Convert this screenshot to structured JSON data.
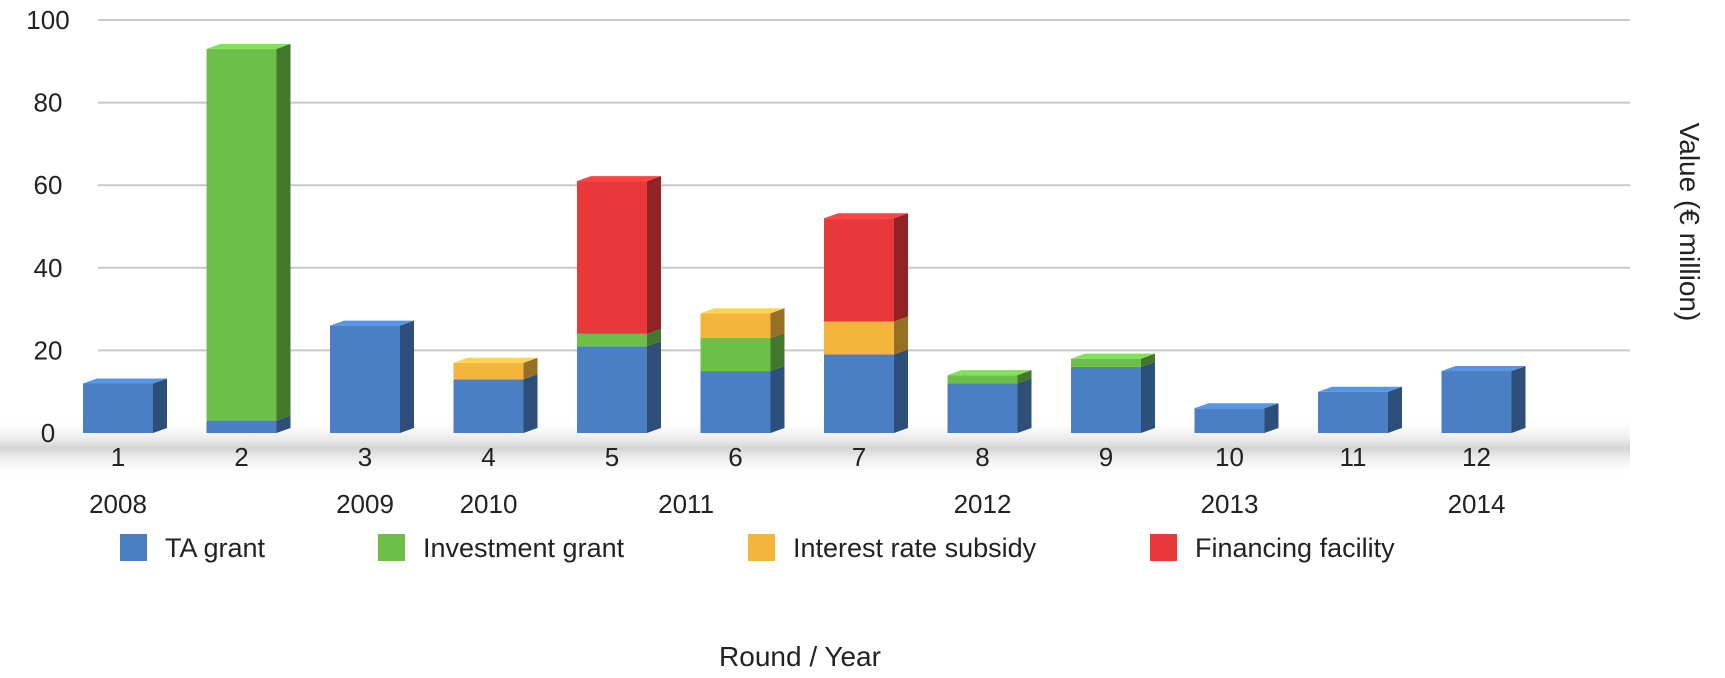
{
  "chart_data": {
    "type": "bar",
    "stacked": true,
    "categories": [
      "1",
      "2",
      "3",
      "4",
      "5",
      "6",
      "7",
      "8",
      "9",
      "10",
      "11",
      "12"
    ],
    "years": [
      {
        "label": "2008",
        "at_category": "1"
      },
      {
        "label": "2009",
        "at_category": "3"
      },
      {
        "label": "2010",
        "at_category": "4"
      },
      {
        "label": "2011",
        "at_category": "5.6"
      },
      {
        "label": "2012",
        "at_category": "8"
      },
      {
        "label": "2013",
        "at_category": "10"
      },
      {
        "label": "2014",
        "at_category": "12"
      }
    ],
    "series": [
      {
        "name": "TA grant",
        "color": "#4a7fc4",
        "values": [
          12,
          3,
          26,
          13,
          21,
          15,
          19,
          12,
          16,
          6,
          10,
          15
        ]
      },
      {
        "name": "Investment grant",
        "color": "#6cc049",
        "values": [
          0,
          90,
          0,
          0,
          3,
          8,
          0,
          2,
          2,
          0,
          0,
          0
        ]
      },
      {
        "name": "Interest rate subsidy",
        "color": "#f3b53c",
        "values": [
          0,
          0,
          0,
          4,
          0,
          6,
          8,
          0,
          0,
          0,
          0,
          0
        ]
      },
      {
        "name": "Financing facility",
        "color": "#e8383a",
        "values": [
          0,
          0,
          0,
          0,
          37,
          0,
          25,
          0,
          0,
          0,
          0,
          0
        ]
      }
    ],
    "yticks": [
      0,
      20,
      40,
      60,
      80,
      100
    ],
    "ylim": [
      0,
      100
    ],
    "xlabel": "Round / Year",
    "ylabel": "Value (€ million)",
    "grid": true,
    "legend": "bottom"
  }
}
